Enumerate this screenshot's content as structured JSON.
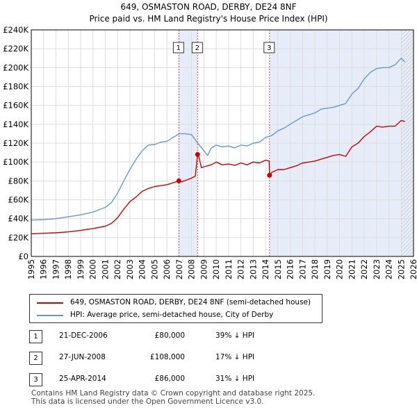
{
  "chart_data": {
    "type": "line",
    "title": "649, OSMASTON ROAD, DERBY, DE24 8NF",
    "subtitle": "Price paid vs. HM Land Registry's House Price Index (HPI)",
    "xlabel": "",
    "ylabel": "",
    "xlim": [
      1995,
      2026
    ],
    "ylim": [
      0,
      240000
    ],
    "x_ticks": [
      "1995",
      "1996",
      "1997",
      "1998",
      "1999",
      "2000",
      "2001",
      "2002",
      "2003",
      "2004",
      "2005",
      "2006",
      "2007",
      "2008",
      "2009",
      "2010",
      "2011",
      "2012",
      "2013",
      "2014",
      "2015",
      "2016",
      "2017",
      "2018",
      "2019",
      "2020",
      "2021",
      "2022",
      "2023",
      "2024",
      "2025",
      "2026"
    ],
    "y_ticks": [
      {
        "value": 0,
        "label": "£0"
      },
      {
        "value": 20000,
        "label": "£20K"
      },
      {
        "value": 40000,
        "label": "£40K"
      },
      {
        "value": 60000,
        "label": "£60K"
      },
      {
        "value": 80000,
        "label": "£80K"
      },
      {
        "value": 100000,
        "label": "£100K"
      },
      {
        "value": 120000,
        "label": "£120K"
      },
      {
        "value": 140000,
        "label": "£140K"
      },
      {
        "value": 160000,
        "label": "£160K"
      },
      {
        "value": 180000,
        "label": "£180K"
      },
      {
        "value": 200000,
        "label": "£200K"
      },
      {
        "value": 220000,
        "label": "£220K"
      },
      {
        "value": 240000,
        "label": "£240K"
      }
    ],
    "grid": true,
    "shaded_periods": [
      [
        2006.97,
        2008.49
      ],
      [
        2014.32,
        2026
      ]
    ],
    "hatched_period": [
      2025.0,
      2026
    ],
    "series": [
      {
        "name": "649, OSMASTON ROAD, DERBY, DE24 8NF (semi-detached house)",
        "color": "#cc0000",
        "x": [
          1995.0,
          1996.0,
          1997.0,
          1998.0,
          1999.0,
          2000.0,
          2001.0,
          2001.5,
          2002.0,
          2002.5,
          2003.0,
          2003.5,
          2004.0,
          2004.5,
          2005.0,
          2005.5,
          2006.0,
          2006.5,
          2006.97,
          2007.2,
          2007.6,
          2008.0,
          2008.3,
          2008.49,
          2008.6,
          2008.8,
          2009.0,
          2009.3,
          2009.6,
          2010.0,
          2010.5,
          2011.0,
          2011.5,
          2012.0,
          2012.5,
          2013.0,
          2013.5,
          2014.0,
          2014.3,
          2014.32,
          2014.5,
          2015.0,
          2015.5,
          2016.0,
          2016.5,
          2017.0,
          2017.5,
          2018.0,
          2018.5,
          2019.0,
          2019.5,
          2020.0,
          2020.5,
          2021.0,
          2021.5,
          2022.0,
          2022.5,
          2023.0,
          2023.5,
          2024.0,
          2024.5,
          2025.0,
          2025.3
        ],
        "values": [
          24000,
          24500,
          25000,
          26000,
          27500,
          29500,
          32000,
          35000,
          41000,
          50000,
          58000,
          63000,
          69000,
          72000,
          74000,
          75000,
          76000,
          78000,
          80000,
          79000,
          81000,
          83000,
          85000,
          108000,
          105000,
          94000,
          95000,
          96000,
          97000,
          100000,
          97000,
          98000,
          96500,
          99000,
          97000,
          100000,
          99000,
          102000,
          101000,
          86000,
          89000,
          92000,
          92000,
          94000,
          96000,
          99000,
          100000,
          101000,
          103000,
          105000,
          107000,
          108000,
          106000,
          116000,
          120000,
          127000,
          132000,
          138000,
          137000,
          138000,
          138000,
          144000,
          143000
        ]
      },
      {
        "name": "HPI: Average price, semi-detached house, City of Derby",
        "color": "#6699cc",
        "x": [
          1995.0,
          1996.0,
          1997.0,
          1998.0,
          1999.0,
          2000.0,
          2001.0,
          2001.5,
          2002.0,
          2002.5,
          2003.0,
          2003.5,
          2004.0,
          2004.5,
          2005.0,
          2005.5,
          2006.0,
          2006.5,
          2007.0,
          2007.5,
          2008.0,
          2008.5,
          2009.0,
          2009.3,
          2009.6,
          2010.0,
          2010.5,
          2011.0,
          2011.5,
          2012.0,
          2012.5,
          2013.0,
          2013.5,
          2014.0,
          2014.5,
          2015.0,
          2015.5,
          2016.0,
          2016.5,
          2017.0,
          2017.5,
          2018.0,
          2018.5,
          2019.0,
          2019.5,
          2020.0,
          2020.5,
          2021.0,
          2021.5,
          2022.0,
          2022.5,
          2023.0,
          2023.5,
          2024.0,
          2024.5,
          2025.0,
          2025.3
        ],
        "values": [
          38500,
          39000,
          40000,
          42000,
          44000,
          47000,
          52000,
          57000,
          67000,
          80000,
          92000,
          103000,
          112000,
          118000,
          118500,
          121000,
          122000,
          126000,
          130000,
          130000,
          129000,
          120000,
          112000,
          107000,
          115000,
          118000,
          116000,
          117000,
          115000,
          118000,
          117000,
          120000,
          121000,
          126000,
          128000,
          133000,
          136000,
          140000,
          144000,
          148000,
          150000,
          152000,
          156000,
          157000,
          158000,
          160000,
          162000,
          172000,
          178000,
          188000,
          195000,
          199000,
          200000,
          200000,
          203000,
          210000,
          206000
        ]
      }
    ],
    "transactions": [
      {
        "id": "1",
        "date": "21-DEC-2006",
        "x": 2006.97,
        "value": 80000,
        "price": "£80,000",
        "hpi": "39% ↓ HPI"
      },
      {
        "id": "2",
        "date": "27-JUN-2008",
        "x": 2008.49,
        "value": 108000,
        "price": "£108,000",
        "hpi": "17% ↓ HPI"
      },
      {
        "id": "3",
        "date": "25-APR-2014",
        "x": 2014.32,
        "value": 86000,
        "price": "£86,000",
        "hpi": "31% ↓ HPI"
      }
    ]
  },
  "legend": {
    "items": [
      {
        "label": "649, OSMASTON ROAD, DERBY, DE24 8NF (semi-detached house)",
        "color": "#cc0000"
      },
      {
        "label": "HPI: Average price, semi-detached house, City of Derby",
        "color": "#6699cc"
      }
    ]
  },
  "table": {
    "rows": [
      {
        "num": "1",
        "date": "21-DEC-2006",
        "price": "£80,000",
        "hpi": "39% ↓ HPI"
      },
      {
        "num": "2",
        "date": "27-JUN-2008",
        "price": "£108,000",
        "hpi": "17% ↓ HPI"
      },
      {
        "num": "3",
        "date": "25-APR-2014",
        "price": "£86,000",
        "hpi": "31% ↓ HPI"
      }
    ]
  },
  "footer": {
    "line1": "Contains HM Land Registry data © Crown copyright and database right 2025.",
    "line2": "This data is licensed under the Open Government Licence v3.0."
  }
}
